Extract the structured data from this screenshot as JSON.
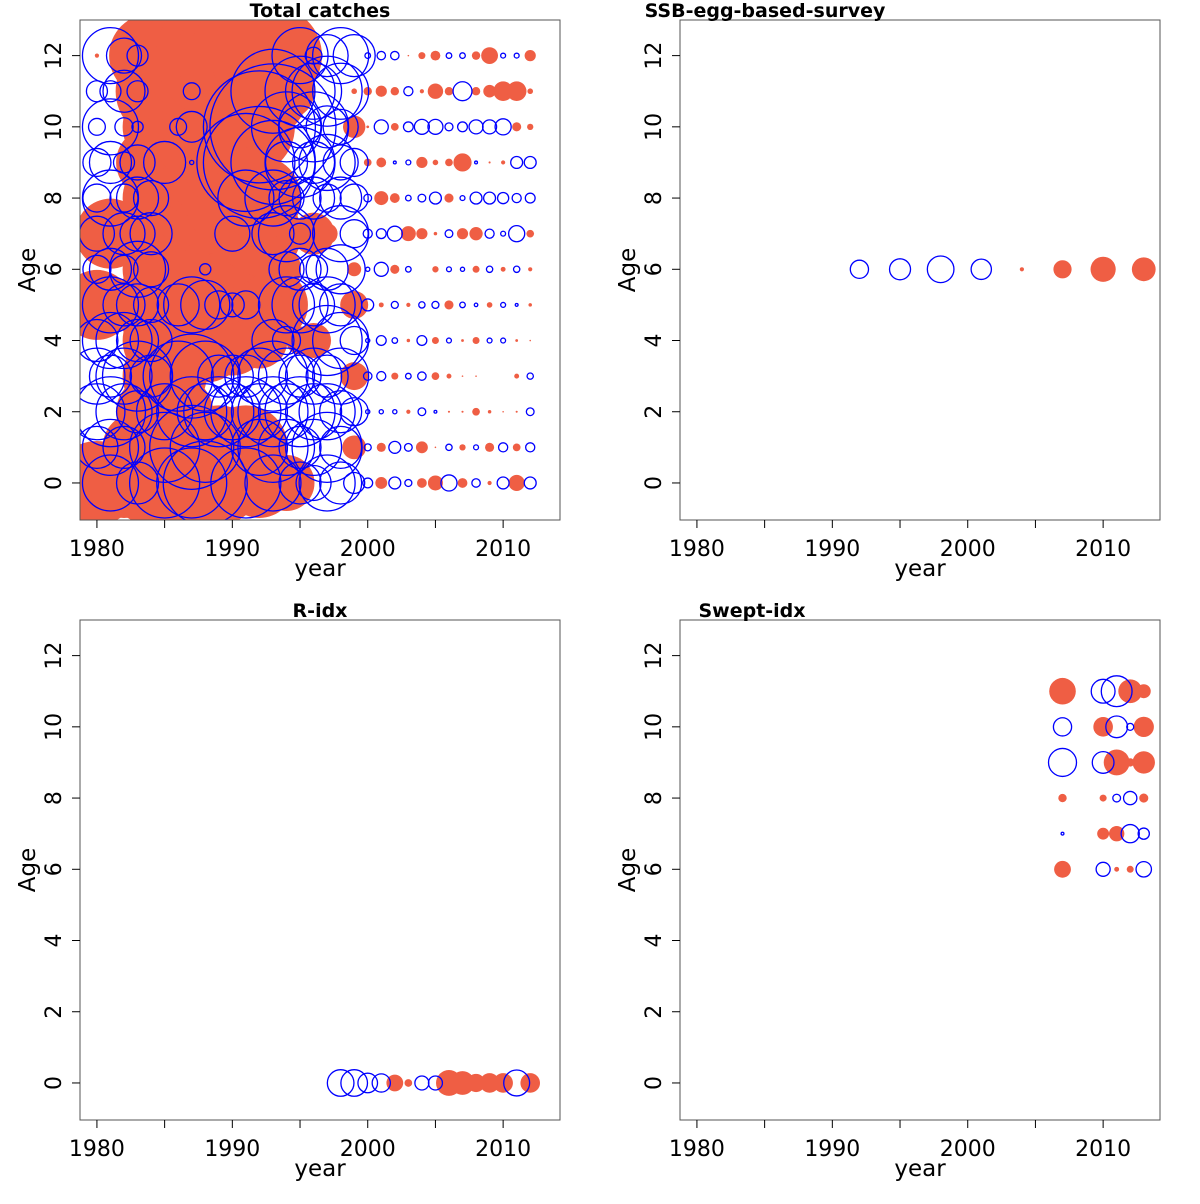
{
  "colors": {
    "positive": "#ef5e44",
    "negative": "#0000ff",
    "axis": "#000000"
  },
  "chart_data": [
    {
      "type": "scatter",
      "subtype": "bubble",
      "title": "Total catches",
      "xlabel": "year",
      "ylabel": "Age",
      "xlim": [
        1978.75,
        2014.2
      ],
      "ylim": [
        -1.04,
        13
      ],
      "xticks": [
        1980,
        1985,
        1990,
        1995,
        2000,
        2005,
        2010
      ],
      "xticklabels": [
        "1980",
        "",
        "1990",
        "",
        "2000",
        "",
        "2010"
      ],
      "yticks": [
        0,
        2,
        4,
        6,
        8,
        10,
        12
      ],
      "yticklabels": [
        "0",
        "2",
        "4",
        "6",
        "8",
        "10",
        "12"
      ],
      "encoding": "filled = positive residual, open = negative residual, size = |residual|",
      "years": [
        1980,
        1981,
        1982,
        1983,
        1984,
        1985,
        1986,
        1987,
        1988,
        1989,
        1990,
        1991,
        1992,
        1993,
        1994,
        1995,
        1996,
        1997,
        1998,
        1999,
        2000,
        2001,
        2002,
        2003,
        2004,
        2005,
        2006,
        2007,
        2008,
        2009,
        2010,
        2011,
        2012
      ],
      "ages": [
        0,
        1,
        2,
        3,
        4,
        5,
        6,
        7,
        8,
        9,
        10,
        11,
        12
      ],
      "values": [
        [
          6,
          -4,
          5,
          -3,
          6,
          -5,
          6,
          -5,
          -6,
          6,
          5,
          -5,
          5,
          -4,
          4,
          -3,
          -2.5,
          -4,
          -3,
          -1.5,
          -0.7,
          0.85,
          -0.85,
          -0.5,
          0.7,
          1.07,
          -1.15,
          0.7,
          -0.6,
          0.3,
          -0.85,
          1.15,
          -0.85
        ],
        [
          -3,
          -4,
          -3,
          5,
          6,
          -5,
          6,
          -6,
          -5,
          6,
          5,
          6,
          -4,
          -5,
          -4,
          -3,
          -4,
          -5,
          -3,
          1.7,
          -0.5,
          0.65,
          -0.85,
          -0.55,
          0.85,
          0.1,
          -0.45,
          0.45,
          -0.35,
          0.65,
          -0.65,
          0.55,
          -0.65
        ],
        [
          -4,
          -5,
          -4,
          -3,
          5,
          -4,
          5,
          -5,
          -4,
          -5,
          -4,
          -5,
          -4,
          -5,
          -4,
          -5,
          -4,
          -4,
          -3,
          -2,
          -0.3,
          -0.3,
          -0.3,
          0.3,
          -0.55,
          -0.2,
          0.15,
          0.15,
          0.55,
          0.25,
          0.1,
          0.15,
          -0.55
        ],
        [
          -4,
          -3,
          -4,
          -5,
          -3,
          6,
          -5,
          -6,
          -5,
          -3,
          -3,
          -3,
          -4,
          -5,
          -4,
          -3,
          -4,
          -3,
          -4,
          2,
          -0.6,
          -0.65,
          0.5,
          -0.4,
          -0.6,
          0.55,
          0.35,
          0.1,
          0.1,
          0,
          0,
          0.35,
          -0.45
        ],
        [
          -3,
          -4,
          -4,
          -3,
          -3,
          6,
          7,
          6,
          6,
          5,
          5,
          4,
          4,
          -3,
          -2,
          2,
          2.5,
          -5,
          -4,
          -2,
          -0.3,
          -0.7,
          -0.4,
          0.25,
          -0.7,
          0.5,
          -0.35,
          0.2,
          0.5,
          -0.35,
          -0.35,
          0.2,
          0.1
        ],
        [
          5,
          -4,
          -3,
          -3,
          -2.5,
          7,
          -3,
          -4,
          -3.5,
          -2,
          -1.7,
          -2,
          4,
          5,
          -4,
          -4,
          -3,
          -4,
          -3,
          2,
          -0.85,
          0.35,
          -0.5,
          0.3,
          -0.45,
          -0.5,
          0.65,
          -0.4,
          -0.25,
          0.4,
          -0.35,
          -0.2,
          0.25
        ],
        [
          -2,
          -3,
          -2,
          -4,
          -2.5,
          6,
          7,
          8,
          -0.8,
          8,
          7,
          6,
          5,
          4,
          -2.5,
          -3,
          -2,
          -3,
          -3.5,
          1,
          -0.3,
          -1.0,
          0.65,
          -0.4,
          0,
          0.45,
          -0.35,
          -0.3,
          0.5,
          -0.45,
          0.35,
          -0.45,
          0.3
        ],
        [
          -2.5,
          5,
          -3,
          -2.5,
          -3,
          1.3,
          7,
          8,
          8,
          8,
          -2.5,
          6,
          6,
          -3,
          -4,
          -1.5,
          3,
          1.5,
          -4,
          -2,
          -0.65,
          -0.7,
          -1.07,
          1.07,
          0.8,
          0.25,
          -0.55,
          0.8,
          0.95,
          -0.65,
          -0.35,
          -1.15,
          0.55
        ],
        [
          -2,
          -4,
          -2,
          -3,
          -2.5,
          6,
          7,
          8,
          8,
          8,
          7,
          -4,
          6,
          -4,
          -2.5,
          -3,
          -3,
          -2,
          -3,
          -2,
          -0.55,
          1.0,
          0.7,
          -0.4,
          -0.55,
          -0.85,
          0.65,
          -0.35,
          -0.85,
          -0.85,
          -0.8,
          -0.65,
          -0.7
        ],
        [
          -2,
          -3,
          -1.5,
          -2.5,
          5,
          -3,
          6,
          -0.3,
          8,
          8,
          7,
          -7,
          -8,
          -6,
          -3,
          -5,
          -3,
          -4,
          -2.5,
          -2,
          0.55,
          0.7,
          -0.2,
          -0.35,
          0.8,
          0.4,
          0.55,
          1.3,
          -0.2,
          0.15,
          0.3,
          -0.85,
          -0.85
        ],
        [
          -1.2,
          -4,
          -1.3,
          -0.8,
          4,
          6,
          -1.2,
          -2.2,
          8,
          8,
          7,
          7,
          -8,
          -9,
          -5,
          -3,
          -5,
          -3,
          -2.5,
          1.6,
          0.2,
          -1.0,
          0.55,
          -0.7,
          -1.07,
          -1.07,
          -0.57,
          -0.7,
          -1.0,
          -1.0,
          -1.15,
          0.65,
          0.45
        ],
        [
          -1.5,
          -1.5,
          -3,
          -1.5,
          5,
          7,
          8,
          -1.2,
          9,
          9,
          8,
          8,
          7,
          -6,
          4,
          -5,
          -4,
          -5,
          -4,
          0.4,
          0.6,
          0.8,
          0.6,
          -0.65,
          0.3,
          1.1,
          0.6,
          -1.35,
          0.6,
          0.9,
          1.4,
          1.4,
          0.4
        ],
        [
          0.3,
          -4,
          -2.5,
          -1.5,
          6,
          7,
          8,
          9,
          9,
          9,
          8,
          8,
          7,
          7,
          5,
          -4,
          -1.2,
          -3,
          -4,
          -3,
          -0.4,
          -0.6,
          -0.6,
          0.1,
          0.5,
          0.7,
          -0.4,
          -0.4,
          0.6,
          1.2,
          -0.35,
          -0.35,
          0.8
        ]
      ]
    },
    {
      "type": "scatter",
      "subtype": "bubble",
      "title": "SSB-egg-based-survey",
      "xlabel": "year",
      "ylabel": "Age",
      "xlim": [
        1978.75,
        2014.2
      ],
      "ylim": [
        -1.04,
        13
      ],
      "xticks": [
        1980,
        1985,
        1990,
        1995,
        2000,
        2005,
        2010
      ],
      "xticklabels": [
        "1980",
        "",
        "1990",
        "",
        "2000",
        "",
        "2010"
      ],
      "yticks": [
        0,
        2,
        4,
        6,
        8,
        10,
        12
      ],
      "yticklabels": [
        "0",
        "2",
        "4",
        "6",
        "8",
        "10",
        "12"
      ],
      "points": [
        [
          1992,
          6,
          -1.3
        ],
        [
          1995,
          6,
          -1.5
        ],
        [
          1998,
          6,
          -1.9
        ],
        [
          2001,
          6,
          -1.45
        ],
        [
          2004,
          6,
          0.3
        ],
        [
          2007,
          6,
          1.3
        ],
        [
          2010,
          6,
          1.8
        ],
        [
          2013,
          6,
          1.7
        ]
      ]
    },
    {
      "type": "scatter",
      "subtype": "bubble",
      "title": "R-idx",
      "xlabel": "year",
      "ylabel": "Age",
      "xlim": [
        1978.75,
        2014.2
      ],
      "ylim": [
        -1.04,
        13
      ],
      "xticks": [
        1980,
        1985,
        1990,
        1995,
        2000,
        2005,
        2010
      ],
      "xticklabels": [
        "1980",
        "",
        "1990",
        "",
        "2000",
        "",
        "2010"
      ],
      "yticks": [
        0,
        2,
        4,
        6,
        8,
        10,
        12
      ],
      "yticklabels": [
        "0",
        "2",
        "4",
        "6",
        "8",
        "10",
        "12"
      ],
      "points": [
        [
          1998,
          0,
          -1.9
        ],
        [
          1999,
          0,
          -1.9
        ],
        [
          2000,
          0,
          -1.4
        ],
        [
          2001,
          0,
          -1.3
        ],
        [
          2002,
          0,
          1.2
        ],
        [
          2003,
          0,
          0.55
        ],
        [
          2004,
          0,
          -1.0
        ],
        [
          2005,
          0,
          -1.0
        ],
        [
          2006,
          0,
          1.85
        ],
        [
          2007,
          0,
          1.7
        ],
        [
          2008,
          0,
          1.3
        ],
        [
          2009,
          0,
          1.4
        ],
        [
          2010,
          0,
          1.4
        ],
        [
          2011,
          0,
          -1.85
        ],
        [
          2012,
          0,
          1.4
        ]
      ]
    },
    {
      "type": "scatter",
      "subtype": "bubble",
      "title": "Swept-idx",
      "xlabel": "year",
      "ylabel": "Age",
      "xlim": [
        1978.75,
        2014.2
      ],
      "ylim": [
        -1.04,
        13
      ],
      "xticks": [
        1980,
        1985,
        1990,
        1995,
        2000,
        2005,
        2010
      ],
      "xticklabels": [
        "1980",
        "",
        "1990",
        "",
        "2000",
        "",
        "2010"
      ],
      "yticks": [
        0,
        2,
        4,
        6,
        8,
        10,
        12
      ],
      "yticklabels": [
        "0",
        "2",
        "4",
        "6",
        "8",
        "10",
        "12"
      ],
      "points": [
        [
          2007,
          11,
          1.9
        ],
        [
          2010,
          11,
          -1.7
        ],
        [
          2011,
          11,
          -2.2
        ],
        [
          2012,
          11,
          1.7
        ],
        [
          2013,
          11,
          1.0
        ],
        [
          2007,
          10,
          -1.3
        ],
        [
          2010,
          10,
          1.4
        ],
        [
          2011,
          10,
          -1.55
        ],
        [
          2012,
          10,
          -0.5
        ],
        [
          2013,
          10,
          1.45
        ],
        [
          2007,
          9,
          -2.0
        ],
        [
          2010,
          9,
          -1.55
        ],
        [
          2011,
          9,
          1.85
        ],
        [
          2012,
          9,
          0.6
        ],
        [
          2013,
          9,
          1.6
        ],
        [
          2007,
          8,
          0.6
        ],
        [
          2010,
          8,
          0.5
        ],
        [
          2011,
          8,
          -0.55
        ],
        [
          2012,
          8,
          -0.95
        ],
        [
          2013,
          8,
          0.65
        ],
        [
          2007,
          7,
          -0.2
        ],
        [
          2010,
          7,
          0.85
        ],
        [
          2011,
          7,
          1.1
        ],
        [
          2012,
          7,
          -1.3
        ],
        [
          2013,
          7,
          -0.8
        ],
        [
          2007,
          6,
          1.2
        ],
        [
          2010,
          6,
          -1.0
        ],
        [
          2011,
          6,
          0.35
        ],
        [
          2012,
          6,
          0.5
        ],
        [
          2013,
          6,
          -1.1
        ]
      ]
    }
  ]
}
